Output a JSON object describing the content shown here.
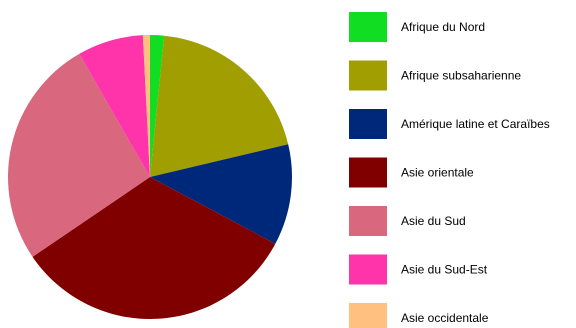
{
  "chart_data": {
    "type": "pie",
    "slices": [
      {
        "label": "Afrique du Nord",
        "value": 1.6,
        "color": "#11DD22"
      },
      {
        "label": "Afrique subsaharienne",
        "value": 19.7,
        "color": "#A09E00"
      },
      {
        "label": "Amérique latine et Caraïbes",
        "value": 11.5,
        "color": "#00287A"
      },
      {
        "label": "Asie orientale",
        "value": 32.7,
        "color": "#800000"
      },
      {
        "label": "Asie du Sud",
        "value": 26.2,
        "color": "#D9687F"
      },
      {
        "label": "Asie du Sud-Est",
        "value": 7.5,
        "color": "#FF33AA"
      },
      {
        "label": "Asie occidentale",
        "value": 0.8,
        "color": "#FFC080"
      }
    ],
    "legend_position": "right"
  }
}
